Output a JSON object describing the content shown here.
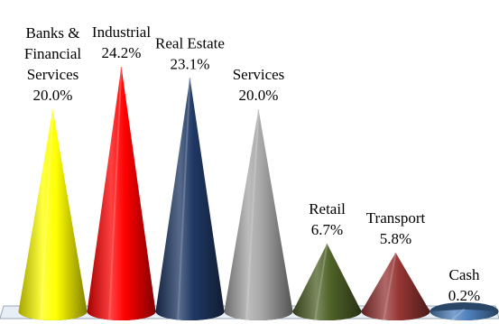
{
  "chart_data": {
    "type": "bar",
    "shape": "cone",
    "categories": [
      "Banks & Financial Services",
      "Industrial",
      "Real Estate",
      "Services",
      "Retail",
      "Transport",
      "Cash"
    ],
    "label_lines": [
      [
        "Banks &",
        "Financial",
        "Services"
      ],
      [
        "Industrial"
      ],
      [
        "Real Estate"
      ],
      [
        "Services"
      ],
      [
        "Retail"
      ],
      [
        "Transport"
      ],
      [
        "Cash"
      ]
    ],
    "values": [
      20.0,
      24.2,
      23.1,
      20.0,
      6.7,
      5.8,
      0.2
    ],
    "value_labels": [
      "20.0%",
      "24.2%",
      "23.1%",
      "20.0%",
      "6.7%",
      "5.8%",
      "0.2%"
    ],
    "colors": [
      "#ffff00",
      "#ff0000",
      "#1f3864",
      "#a6a6a6",
      "#4f6228",
      "#963634",
      "#4f81bd"
    ],
    "title": "",
    "xlabel": "",
    "ylabel": "",
    "ylim": [
      0,
      24.2
    ],
    "grid": false,
    "legend": "none"
  }
}
